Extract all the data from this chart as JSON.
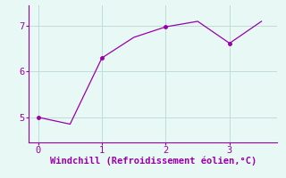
{
  "x": [
    0,
    0.5,
    1.0,
    1.5,
    2.0,
    2.5,
    3.0,
    3.5
  ],
  "y": [
    5.0,
    4.85,
    6.3,
    6.75,
    6.98,
    7.1,
    6.62,
    7.1
  ],
  "line_color": "#9900aa",
  "marker_indices": [
    0,
    2,
    4,
    6
  ],
  "marker_color": "#9900aa",
  "background_color": "#e8f8f4",
  "grid_color": "#c0ddd8",
  "xlabel": "Windchill (Refroidissement éolien,°C)",
  "xlabel_color": "#9900aa",
  "xlabel_fontsize": 7.5,
  "tick_color": "#9900aa",
  "tick_fontsize": 7.5,
  "xlim": [
    -0.15,
    3.75
  ],
  "ylim": [
    4.45,
    7.45
  ],
  "yticks": [
    5,
    6,
    7
  ],
  "xticks": [
    0,
    1,
    2,
    3
  ]
}
